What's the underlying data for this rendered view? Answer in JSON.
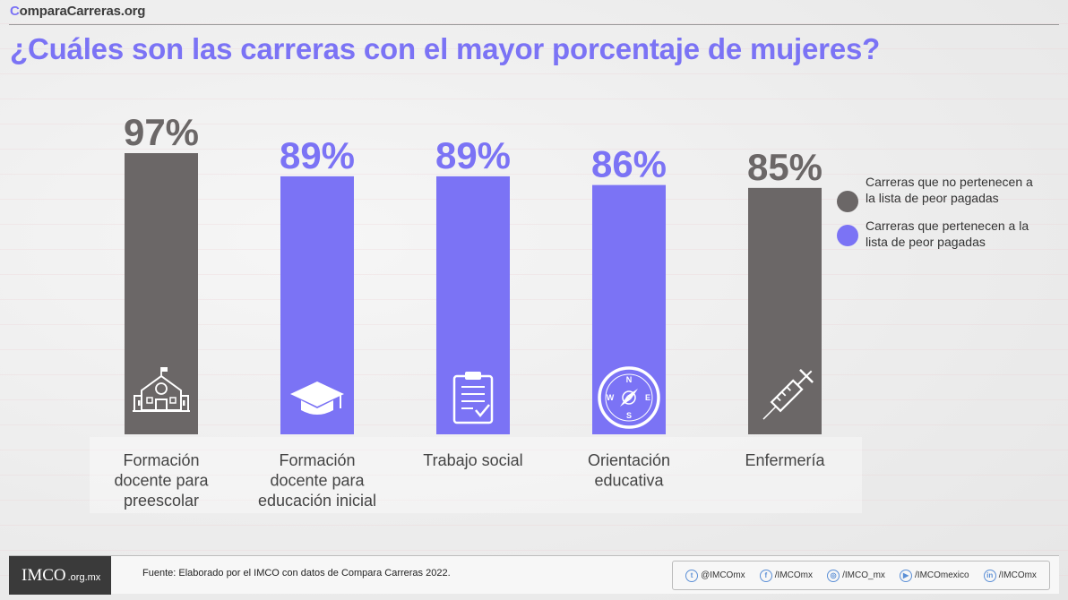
{
  "header": {
    "brand_first": "C",
    "brand_rest": "omparaCarreras.org",
    "title": "¿Cuáles son las carreras con el mayor porcentaje de mujeres?"
  },
  "colors": {
    "grey": "#6b6767",
    "purple": "#7b73f5",
    "title": "#7b73f5"
  },
  "legend": {
    "items": [
      {
        "label": "Carreras que no pertenecen a la lista de peor pagadas",
        "color": "#6b6767"
      },
      {
        "label": "Carreras  que pertenecen a la lista de peor pagadas",
        "color": "#7b73f5"
      }
    ]
  },
  "chart_data": {
    "type": "bar",
    "title": "¿Cuáles son las carreras con el mayor porcentaje de mujeres?",
    "unit": "%",
    "categories": [
      "Formación docente para preescolar",
      "Formación docente para educación inicial",
      "Trabajo social",
      "Orientación educativa",
      "Enfermería"
    ],
    "values": [
      97,
      89,
      89,
      86,
      85
    ],
    "value_labels": [
      "97%",
      "89%",
      "89%",
      "86%",
      "85%"
    ],
    "category_lines": [
      [
        "Formación",
        "docente para",
        "preescolar"
      ],
      [
        "Formación",
        "docente para",
        "educación inicial"
      ],
      [
        "Trabajo social"
      ],
      [
        "Orientación",
        "educativa"
      ],
      [
        "Enfermería"
      ]
    ],
    "groups": [
      "no_peor",
      "peor",
      "peor",
      "peor",
      "no_peor"
    ],
    "icons": [
      "school-icon",
      "graduation-cap-icon",
      "clipboard-check-icon",
      "compass-icon",
      "syringe-icon"
    ],
    "legend_placement": "right",
    "grid": false
  },
  "footer": {
    "logo": "IMCO",
    "logo_suffix": ".org.mx",
    "source": "Fuente: Elaborado por el IMCO con datos de Compara Carreras 2022.",
    "social": [
      {
        "icon": "twitter-icon",
        "glyph": "t",
        "label": "@IMCOmx"
      },
      {
        "icon": "facebook-icon",
        "glyph": "f",
        "label": "/IMCOmx"
      },
      {
        "icon": "instagram-icon",
        "glyph": "◎",
        "label": "/IMCO_mx"
      },
      {
        "icon": "youtube-icon",
        "glyph": "▶",
        "label": "/IMCOmexico"
      },
      {
        "icon": "linkedin-icon",
        "glyph": "in",
        "label": "/IMCOmx"
      }
    ]
  }
}
